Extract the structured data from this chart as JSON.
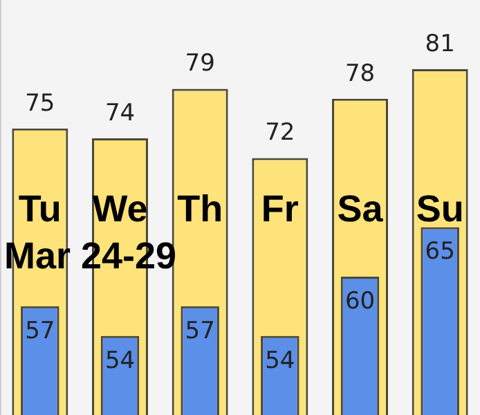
{
  "chart_data": {
    "type": "bar",
    "subtitle": "Mar 24-29",
    "categories": [
      "Tu",
      "We",
      "Th",
      "Fr",
      "Sa",
      "Su"
    ],
    "series": [
      {
        "color": "#fee27a",
        "values": [
          75,
          74,
          79,
          72,
          78,
          81
        ]
      },
      {
        "color": "#5b8fe8",
        "values": [
          57,
          54,
          57,
          54,
          60,
          65
        ]
      }
    ],
    "ylim": [
      46,
      88
    ],
    "tick_labels": "x",
    "data_labels": true,
    "legend": false
  }
}
